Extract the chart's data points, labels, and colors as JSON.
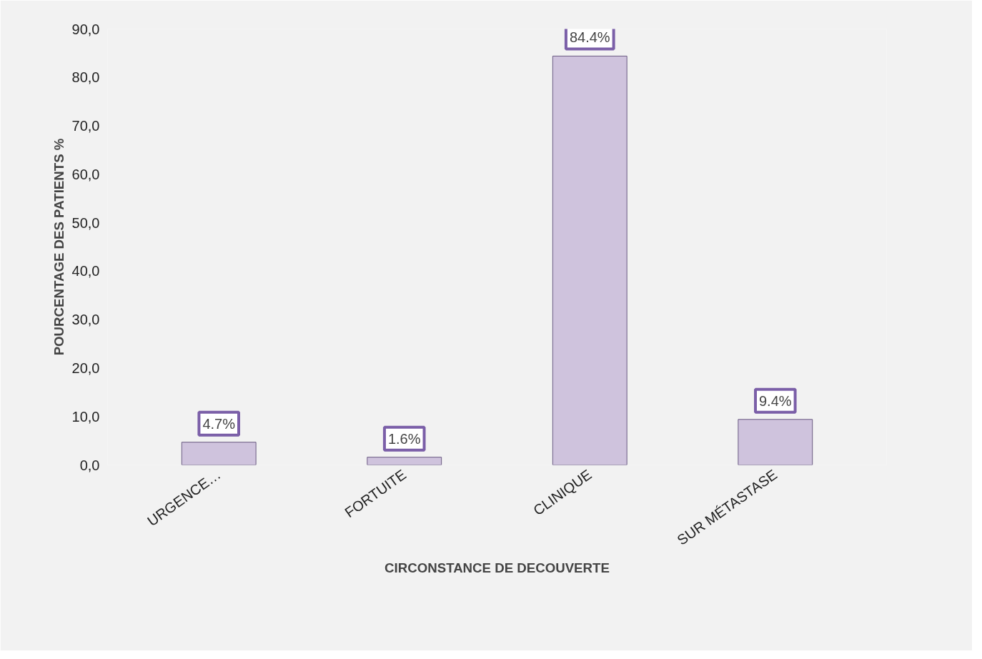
{
  "chart_data": {
    "type": "bar",
    "xlabel": "CIRCONSTANCE DE DECOUVERTE",
    "ylabel": "POURCENTAGE DES PATIENTS %",
    "categories": [
      "URGENCE…",
      "FORTUITE",
      "CLINIQUE",
      "SUR MÉTASTASE"
    ],
    "values": [
      4.7,
      1.6,
      84.4,
      9.4
    ],
    "color": "#cfc3dd",
    "value_labels": [
      "4.7%",
      "1.6%",
      "84.4%",
      "9.4%"
    ],
    "ylim": [
      0,
      90
    ],
    "yticks": [
      {
        "value": 0,
        "label": "0,0"
      },
      {
        "value": 10,
        "label": "10,0"
      },
      {
        "value": 20,
        "label": "20,0"
      },
      {
        "value": 30,
        "label": "30,0"
      },
      {
        "value": 40,
        "label": "40,0"
      },
      {
        "value": 50,
        "label": "50,0"
      },
      {
        "value": 60,
        "label": "60,0"
      },
      {
        "value": 70,
        "label": "70,0"
      },
      {
        "value": 80,
        "label": "80,0"
      },
      {
        "value": 90,
        "label": "90,0"
      }
    ],
    "grid": false
  }
}
